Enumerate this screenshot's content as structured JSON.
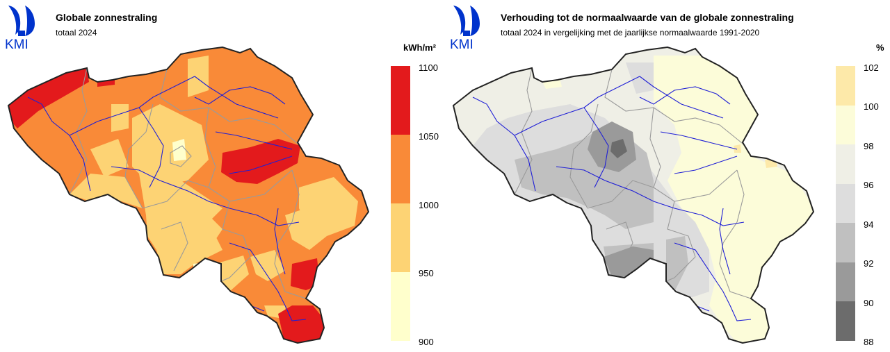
{
  "left_panel": {
    "logo_text": "KMI",
    "title": "Globale zonnestraling",
    "subtitle": "totaal 2024",
    "legend": {
      "unit": "kWh/m²",
      "ticks": [
        "1100",
        "1050",
        "1000",
        "950",
        "900"
      ],
      "bands": [
        {
          "from": 1050,
          "to": 1100,
          "color": "#e31a1c"
        },
        {
          "from": 1000,
          "to": 1050,
          "color": "#f98a38"
        },
        {
          "from": 950,
          "to": 1000,
          "color": "#fdd374"
        },
        {
          "from": 900,
          "to": 950,
          "color": "#ffffcc"
        }
      ]
    }
  },
  "right_panel": {
    "logo_text": "KMI",
    "title": "Verhouding tot de normaalwaarde van de globale zonnestraling",
    "subtitle": "totaal 2024 in vergelijking met de jaarlijkse normaalwaarde 1991-2020",
    "legend": {
      "unit": "%",
      "ticks": [
        "102",
        "100",
        "98",
        "96",
        "94",
        "92",
        "90",
        "88"
      ],
      "bands": [
        {
          "from": 100,
          "to": 102,
          "color": "#fde9a9"
        },
        {
          "from": 98,
          "to": 100,
          "color": "#fcfcd9"
        },
        {
          "from": 96,
          "to": 98,
          "color": "#efefe6"
        },
        {
          "from": 94,
          "to": 96,
          "color": "#dddddd"
        },
        {
          "from": 92,
          "to": 94,
          "color": "#c0c0c0"
        },
        {
          "from": 90,
          "to": 92,
          "color": "#9a9a9a"
        },
        {
          "from": 88,
          "to": 90,
          "color": "#6c6c6c"
        }
      ]
    }
  },
  "colors": {
    "logo_blue": "#0033cc",
    "river_blue": "#1f1fd6",
    "border_grey": "#9a9a9a",
    "outline": "#222222"
  }
}
